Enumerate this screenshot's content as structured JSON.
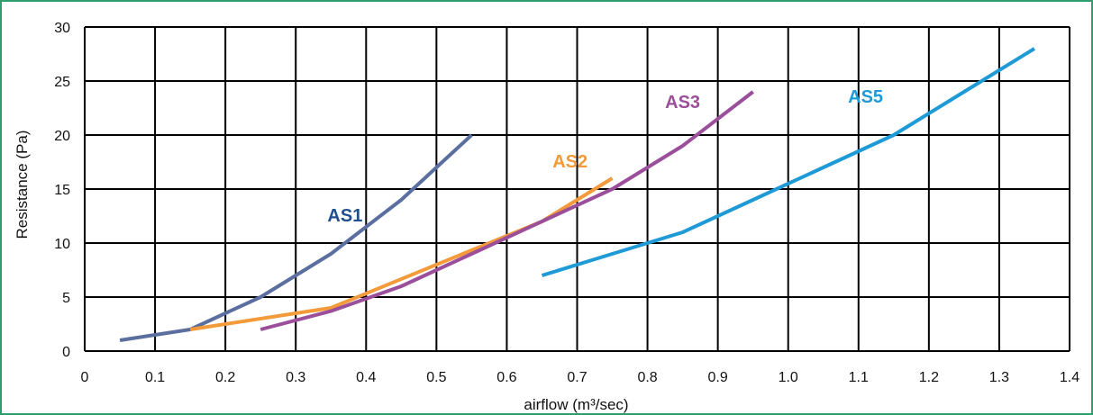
{
  "chart_data": {
    "type": "line",
    "xlabel": "airflow (m³/sec)",
    "ylabel": "Resistance (Pa)",
    "xlim": [
      0,
      1.4
    ],
    "ylim": [
      0,
      30
    ],
    "x_ticks": [
      0,
      0.1,
      0.2,
      0.3,
      0.4,
      0.5,
      0.6,
      0.7,
      0.8,
      0.9,
      1.0,
      1.1,
      1.2,
      1.3,
      1.4
    ],
    "x_tick_labels": [
      "0",
      "0.1",
      "0.2",
      "0.3",
      "0.4",
      "0.5",
      "0.6",
      "0.7",
      "0.8",
      "0.9",
      "1.0",
      "1.1",
      "1.2",
      "1.3",
      "1.4"
    ],
    "y_ticks": [
      0,
      5,
      10,
      15,
      20,
      25,
      30
    ],
    "y_tick_labels": [
      "0",
      "5",
      "10",
      "15",
      "20",
      "25",
      "30"
    ],
    "grid": true,
    "legend": "labels placed directly on lines",
    "series": [
      {
        "name": "AS1",
        "color": "#5a6ea0",
        "label_color": "#1f4f8f",
        "x": [
          0.05,
          0.15,
          0.25,
          0.35,
          0.45,
          0.55
        ],
        "y": [
          1.0,
          2.0,
          5.0,
          9.0,
          14.0,
          20.0
        ]
      },
      {
        "name": "AS2",
        "color": "#f39a3a",
        "label_color": "#f39a3a",
        "x": [
          0.15,
          0.35,
          0.65,
          0.75
        ],
        "y": [
          2.0,
          4.0,
          12.0,
          16.0
        ]
      },
      {
        "name": "AS3",
        "color": "#9b4f9b",
        "label_color": "#9b4f9b",
        "x": [
          0.25,
          0.35,
          0.45,
          0.55,
          0.65,
          0.75,
          0.85,
          0.95
        ],
        "y": [
          2.0,
          3.7,
          6.0,
          9.0,
          12.0,
          15.0,
          19.0,
          24.0
        ]
      },
      {
        "name": "AS5",
        "color": "#1e9ad6",
        "label_color": "#1e9ad6",
        "x": [
          0.65,
          0.75,
          0.85,
          0.95,
          1.05,
          1.15,
          1.25,
          1.35
        ],
        "y": [
          7.0,
          9.0,
          11.0,
          14.0,
          17.0,
          20.0,
          24.0,
          28.0
        ]
      }
    ],
    "annotations": [
      {
        "text": "AS1",
        "x": 0.37,
        "y": 12.0,
        "color": "#1f4f8f"
      },
      {
        "text": "AS2",
        "x": 0.69,
        "y": 17.0,
        "color": "#f39a3a"
      },
      {
        "text": "AS3",
        "x": 0.85,
        "y": 22.5,
        "color": "#9b4f9b"
      },
      {
        "text": "AS5",
        "x": 1.11,
        "y": 23.0,
        "color": "#1e9ad6"
      }
    ]
  }
}
